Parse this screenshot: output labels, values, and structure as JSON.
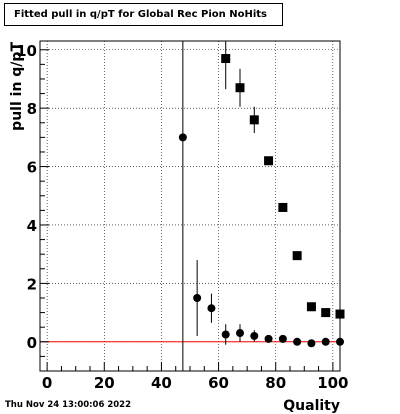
{
  "title": "Fitted pull in q/pT for Global Rec Pion NoHits",
  "timestamp": "Thu Nov 24 13:00:06 2022",
  "chart_data": {
    "type": "scatter",
    "title": "Fitted pull in q/pT for Global Rec Pion NoHits",
    "xlabel": "Quality",
    "ylabel": "pull in q/pT",
    "xlim": [
      -2.5,
      102.5
    ],
    "ylim": [
      -1,
      10.3
    ],
    "xticks": [
      0,
      20,
      40,
      60,
      80,
      100
    ],
    "yticks": [
      0,
      2,
      4,
      6,
      8,
      10
    ],
    "grid": true,
    "reference_line": {
      "y": 0,
      "color": "#ff0000"
    },
    "vertical_line": {
      "x": 47.5
    },
    "colors": {
      "markers": "#000000",
      "reference": "#ff0000",
      "grid": "#000000"
    },
    "series": [
      {
        "marker": "circle",
        "points": [
          {
            "x": 47.5,
            "y": 7.0,
            "yerr": 0.05
          },
          {
            "x": 52.5,
            "y": 1.5,
            "yerr": 1.3
          },
          {
            "x": 57.5,
            "y": 1.15,
            "yerr": 0.5
          },
          {
            "x": 62.5,
            "y": 0.25,
            "yerr": 0.35
          },
          {
            "x": 67.5,
            "y": 0.3,
            "yerr": 0.3
          },
          {
            "x": 72.5,
            "y": 0.2,
            "yerr": 0.2
          },
          {
            "x": 77.5,
            "y": 0.1,
            "yerr": 0.05
          },
          {
            "x": 82.5,
            "y": 0.1,
            "yerr": 0.05
          },
          {
            "x": 87.5,
            "y": 0.0,
            "yerr": 0.05
          },
          {
            "x": 92.5,
            "y": -0.05,
            "yerr": 0.05
          },
          {
            "x": 97.5,
            "y": 0.0,
            "yerr": 0.05
          },
          {
            "x": 102.5,
            "y": 0.0,
            "yerr": 0.05
          }
        ]
      },
      {
        "marker": "square",
        "points": [
          {
            "x": 62.5,
            "y": 9.7,
            "yerr": 1.05
          },
          {
            "x": 67.5,
            "y": 8.7,
            "yerr": 0.65
          },
          {
            "x": 72.5,
            "y": 7.6,
            "yerr": 0.45
          },
          {
            "x": 77.5,
            "y": 6.2,
            "yerr": 0.1
          },
          {
            "x": 82.5,
            "y": 4.6,
            "yerr": 0.05
          },
          {
            "x": 87.5,
            "y": 2.95,
            "yerr": 0.05
          },
          {
            "x": 92.5,
            "y": 1.2,
            "yerr": 0.05
          },
          {
            "x": 97.5,
            "y": 1.0,
            "yerr": 0.05
          },
          {
            "x": 102.5,
            "y": 0.95,
            "yerr": 0.05
          }
        ]
      }
    ]
  }
}
